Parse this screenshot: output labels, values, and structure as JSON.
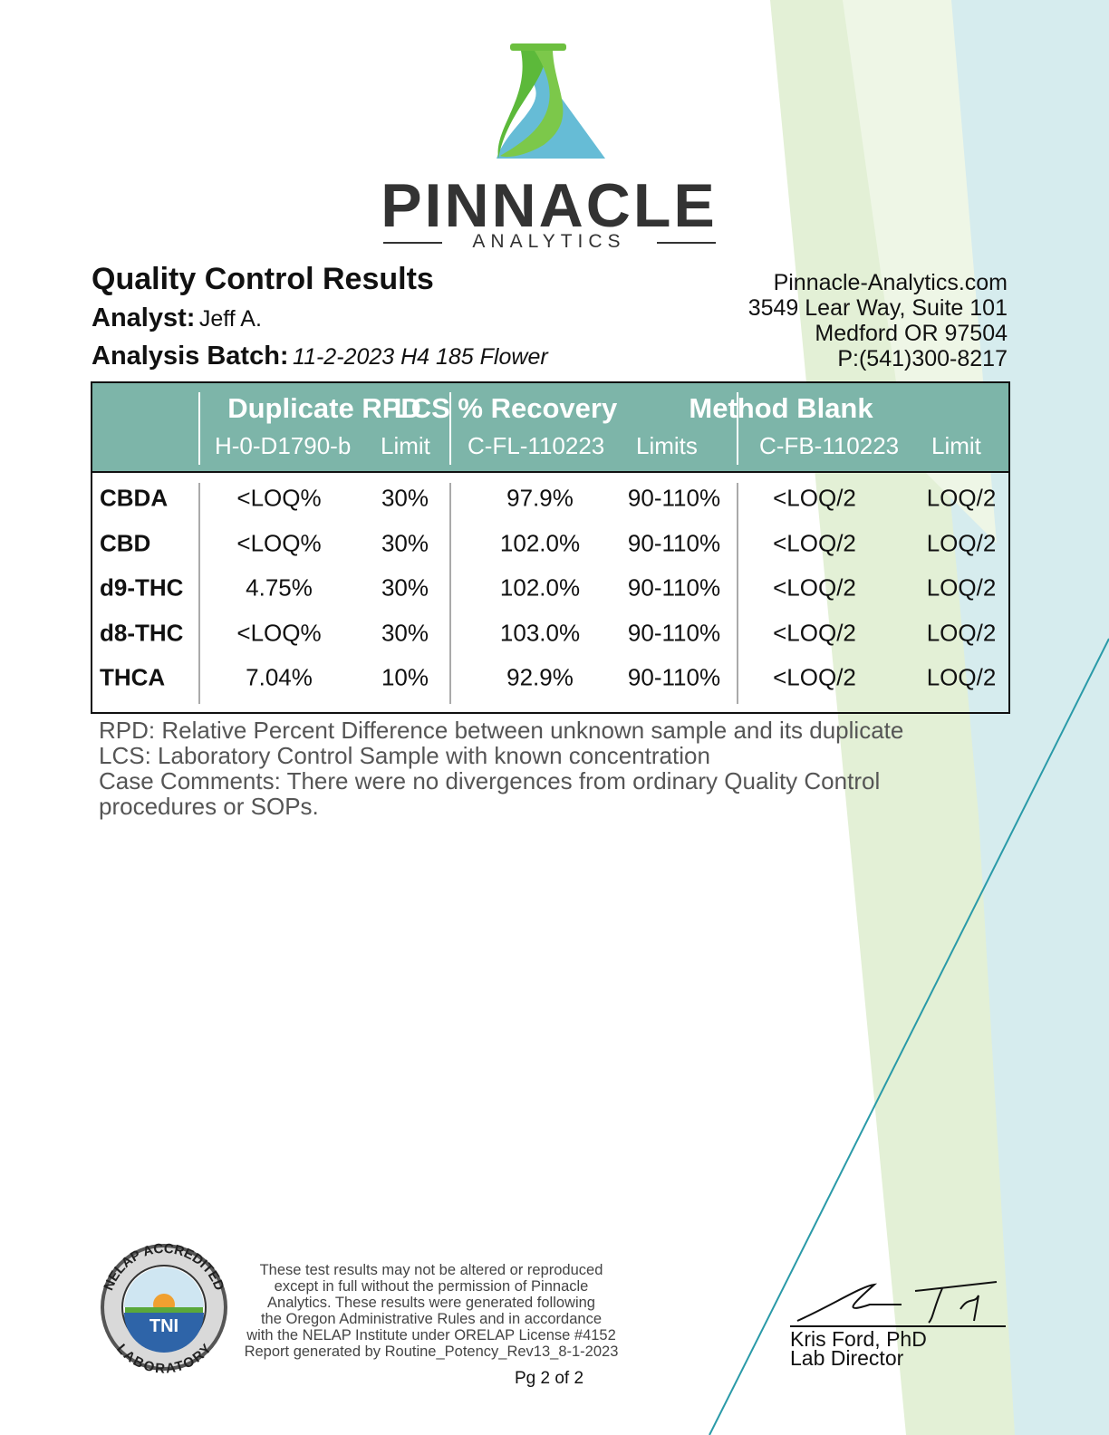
{
  "logo": {
    "name": "PINNACLE",
    "tagline": "ANALYTICS"
  },
  "header": {
    "title": "Quality Control Results",
    "analyst_label": "Analyst:",
    "analyst": "Jeff A.",
    "batch_label": "Analysis Batch:",
    "batch": "11-2-2023 H4 185 Flower"
  },
  "contact": [
    "Pinnacle-Analytics.com",
    "3549 Lear Way, Suite 101",
    "Medford OR 97504",
    "P:(541)300-8217"
  ],
  "table": {
    "groups": [
      {
        "title": "Duplicate RPD",
        "sub": [
          "H-0-D1790-b",
          "Limit"
        ]
      },
      {
        "title": "LCS % Recovery",
        "sub": [
          "C-FL-110223",
          "Limits"
        ]
      },
      {
        "title": "Method Blank",
        "sub": [
          "C-FB-110223",
          "Limit"
        ]
      }
    ],
    "rows": [
      [
        "CBDA",
        "<LOQ%",
        "30%",
        "97.9%",
        "90-110%",
        "<LOQ/2",
        "LOQ/2"
      ],
      [
        "CBD",
        "<LOQ%",
        "30%",
        "102.0%",
        "90-110%",
        "<LOQ/2",
        "LOQ/2"
      ],
      [
        "d9-THC",
        "4.75%",
        "30%",
        "102.0%",
        "90-110%",
        "<LOQ/2",
        "LOQ/2"
      ],
      [
        "d8-THC",
        "<LOQ%",
        "30%",
        "103.0%",
        "90-110%",
        "<LOQ/2",
        "LOQ/2"
      ],
      [
        "THCA",
        "7.04%",
        "10%",
        "92.9%",
        "90-110%",
        "<LOQ/2",
        "LOQ/2"
      ]
    ]
  },
  "notes": [
    "RPD: Relative Percent Difference between unknown sample and its duplicate",
    "LCS: Laboratory Control Sample with known concentration",
    "Case Comments: There were no divergences from ordinary Quality Control",
    "procedures or SOPs."
  ],
  "footer": {
    "seal": {
      "top": "NELAP ACCREDITED",
      "center": "TNI",
      "bottom": "LABORATORY"
    },
    "disclaimer": [
      "These test results may not be altered or reproduced",
      "except in full without the permission of Pinnacle",
      "Analytics. These results were generated following",
      "the Oregon Administrative Rules and in accordance",
      "with the NELAP Institute under ORELAP License #4152",
      "Report generated by Routine_Potency_Rev13_8-1-2023"
    ],
    "signature_name": "Kris Ford, PhD",
    "signature_title": "Lab Director",
    "page": "Pg 2 of 2"
  }
}
